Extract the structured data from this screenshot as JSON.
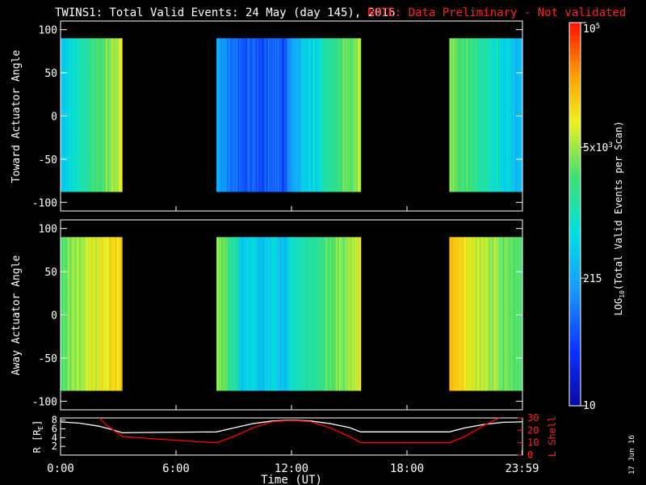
{
  "header": {
    "title": "TWINS1: Total Valid Events: 24 May (day 145), 2016",
    "note": "NOTE: Data Preliminary - Not validated"
  },
  "colors": {
    "background": "#000000",
    "foreground": "#ffffff",
    "note": "#ff2020",
    "lshell": "#ff0000",
    "radius": "#ffffff"
  },
  "stamp": "17 Jun 16",
  "colorbar": {
    "label": "LOG10(Total Valid Events per Scan)",
    "label_prefix": "LOG",
    "label_sub": "10",
    "label_rest": "(Total Valid Events per Scan)",
    "scale": "log",
    "colormap": "rainbow",
    "ticks": [
      {
        "value": 10,
        "label": "10"
      },
      {
        "value": 215,
        "label": "215"
      },
      {
        "value": 5000,
        "label": "5x10",
        "sup": "3"
      },
      {
        "value": 100000,
        "label": "10",
        "sup": "5"
      }
    ],
    "range": [
      10,
      100000
    ]
  },
  "chart_data": [
    {
      "type": "heatmap",
      "title": "",
      "ylabel": "Toward Actuator Angle",
      "ylim": [
        -110,
        110
      ],
      "yticks": [
        "100",
        "50",
        "0",
        "-50",
        "-100"
      ],
      "ytick_values": [
        100,
        50,
        0,
        -50,
        -100
      ],
      "xlim_hours": [
        0,
        24
      ],
      "angle_range": [
        -88,
        90
      ],
      "data_intervals_hours": [
        [
          0.0,
          3.2
        ],
        [
          8.1,
          15.6
        ],
        [
          20.2,
          24.0
        ]
      ],
      "color_level_description": "blue-cyan-green-yellow, brightest yellow near 2-3 UT and 14-15 UT, darkest blue near 9.5-11.5 UT"
    },
    {
      "type": "heatmap",
      "title": "",
      "ylabel": "Away Actuator Angle",
      "ylim": [
        -110,
        110
      ],
      "yticks": [
        "100",
        "50",
        "0",
        "-50",
        "-100"
      ],
      "ytick_values": [
        100,
        50,
        0,
        -50,
        -100
      ],
      "xlim_hours": [
        0,
        24
      ],
      "angle_range": [
        -88,
        90
      ],
      "data_intervals_hours": [
        [
          0.0,
          3.2
        ],
        [
          8.1,
          15.6
        ],
        [
          20.2,
          24.0
        ]
      ],
      "color_level_description": "yellow-orange in first and last intervals, green-blue with yellow edges in middle interval"
    },
    {
      "type": "line",
      "title": "",
      "xlabel": "Time (UT)",
      "xticks": [
        "0:00",
        "6:00",
        "12:00",
        "18:00",
        "23:59"
      ],
      "xtick_values": [
        0,
        6,
        12,
        18,
        23.98
      ],
      "y_left": {
        "label": "R [RE]",
        "label_main": "R [R",
        "label_sub": "E",
        "label_end": "]",
        "ticks": [
          "8",
          "6",
          "4",
          "2"
        ],
        "tick_values": [
          8,
          6,
          4,
          2
        ],
        "range": [
          0,
          8.5
        ]
      },
      "y_right": {
        "label": "L Shell",
        "ticks": [
          "30",
          "20",
          "10",
          "0"
        ],
        "tick_values": [
          30,
          20,
          10,
          0
        ],
        "range": [
          0,
          30
        ]
      },
      "series": [
        {
          "name": "R [RE]",
          "axis": "left",
          "color": "#ffffff",
          "x": [
            0,
            1,
            2,
            2.7,
            3.2,
            5,
            8.1,
            9,
            10,
            11,
            12,
            13,
            14,
            15,
            15.6,
            18,
            20.2,
            21,
            22,
            23,
            24
          ],
          "y": [
            7.6,
            7.3,
            6.6,
            5.8,
            5.1,
            5.2,
            5.3,
            6.2,
            7.2,
            7.8,
            8.0,
            7.8,
            7.2,
            6.3,
            5.3,
            5.3,
            5.3,
            6.2,
            7.0,
            7.5,
            7.6
          ]
        },
        {
          "name": "L Shell",
          "axis": "right",
          "color": "#ff0000",
          "x": [
            2.0,
            2.4,
            3.2,
            5,
            8.1,
            9,
            10,
            11,
            12,
            13,
            14,
            15,
            15.6,
            18,
            20.2,
            21,
            22,
            22.8
          ],
          "y": [
            30,
            24,
            15,
            13,
            10,
            15,
            22,
            27,
            28,
            27,
            22,
            15,
            10,
            10,
            10,
            15,
            24,
            30
          ]
        }
      ]
    }
  ]
}
